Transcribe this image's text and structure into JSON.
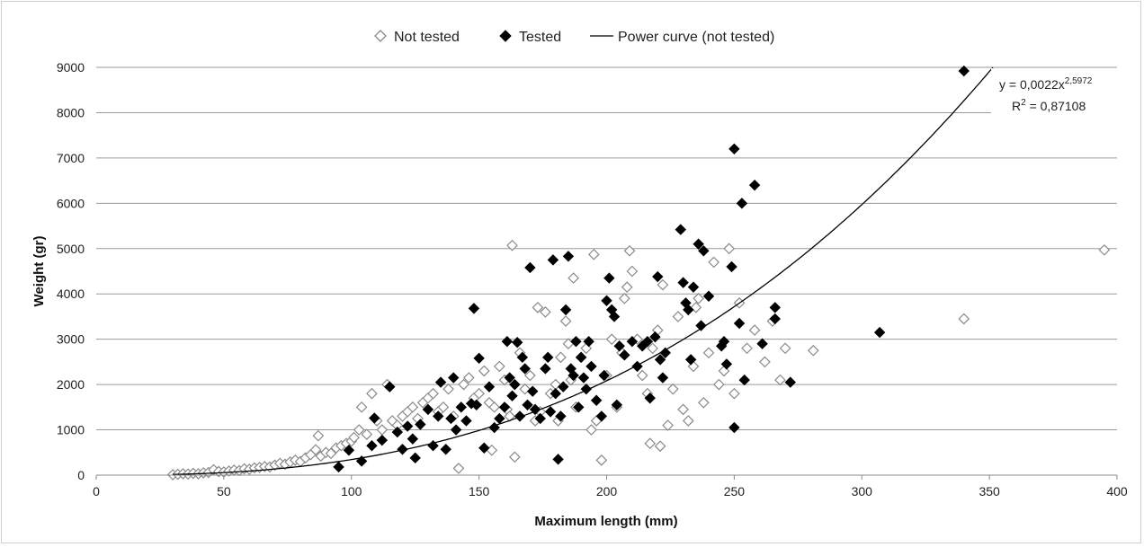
{
  "chart_data": {
    "type": "scatter",
    "xlabel": "Maximum length (mm)",
    "ylabel": "Weight (gr)",
    "xlim": [
      0,
      400
    ],
    "ylim": [
      0,
      9000
    ],
    "x_ticks": [
      "0",
      "50",
      "100",
      "150",
      "200",
      "250",
      "300",
      "350",
      "400"
    ],
    "y_ticks": [
      "0",
      "1000",
      "2000",
      "3000",
      "4000",
      "5000",
      "6000",
      "7000",
      "8000",
      "9000"
    ],
    "grid": "horizontal",
    "legend_position": "top",
    "legend": [
      {
        "label": "Not tested",
        "marker": "open-diamond"
      },
      {
        "label": "Tested",
        "marker": "filled-diamond"
      },
      {
        "label": "Power curve (not tested)",
        "marker": "line"
      }
    ],
    "annotation": {
      "equation_prefix": "y = 0,0022x",
      "equation_exponent": "2,5972",
      "r2_prefix": "R",
      "r2_exponent": "2",
      "r2_value": " = 0,87108"
    },
    "trendline": {
      "coefficient": 0.0022,
      "exponent": 2.5972
    },
    "series": [
      {
        "name": "Not tested",
        "marker": "open-diamond",
        "points": [
          [
            30,
            10
          ],
          [
            32,
            20
          ],
          [
            34,
            30
          ],
          [
            36,
            25
          ],
          [
            38,
            40
          ],
          [
            40,
            30
          ],
          [
            42,
            50
          ],
          [
            44,
            60
          ],
          [
            46,
            120
          ],
          [
            48,
            80
          ],
          [
            50,
            70
          ],
          [
            52,
            90
          ],
          [
            54,
            110
          ],
          [
            56,
            100
          ],
          [
            58,
            140
          ],
          [
            60,
            130
          ],
          [
            62,
            160
          ],
          [
            64,
            170
          ],
          [
            66,
            190
          ],
          [
            68,
            180
          ],
          [
            70,
            220
          ],
          [
            72,
            260
          ],
          [
            74,
            240
          ],
          [
            76,
            290
          ],
          [
            78,
            330
          ],
          [
            80,
            300
          ],
          [
            82,
            380
          ],
          [
            84,
            450
          ],
          [
            86,
            560
          ],
          [
            87,
            870
          ],
          [
            88,
            420
          ],
          [
            90,
            500
          ],
          [
            92,
            480
          ],
          [
            94,
            600
          ],
          [
            96,
            650
          ],
          [
            98,
            700
          ],
          [
            100,
            750
          ],
          [
            101,
            830
          ],
          [
            103,
            1000
          ],
          [
            104,
            1500
          ],
          [
            106,
            900
          ],
          [
            108,
            1800
          ],
          [
            110,
            1200
          ],
          [
            112,
            1000
          ],
          [
            114,
            2000
          ],
          [
            116,
            1200
          ],
          [
            118,
            1100
          ],
          [
            120,
            1300
          ],
          [
            122,
            1400
          ],
          [
            124,
            1500
          ],
          [
            126,
            1250
          ],
          [
            128,
            1600
          ],
          [
            130,
            1700
          ],
          [
            132,
            1800
          ],
          [
            134,
            1400
          ],
          [
            136,
            1500
          ],
          [
            138,
            1900
          ],
          [
            140,
            1300
          ],
          [
            142,
            150
          ],
          [
            144,
            2000
          ],
          [
            146,
            2150
          ],
          [
            148,
            1700
          ],
          [
            150,
            1800
          ],
          [
            152,
            2300
          ],
          [
            154,
            1600
          ],
          [
            155,
            550
          ],
          [
            156,
            1500
          ],
          [
            158,
            2400
          ],
          [
            160,
            2100
          ],
          [
            161,
            1450
          ],
          [
            162,
            1300
          ],
          [
            163,
            5070
          ],
          [
            164,
            400
          ],
          [
            166,
            2700
          ],
          [
            168,
            1900
          ],
          [
            170,
            2200
          ],
          [
            172,
            1200
          ],
          [
            173,
            3700
          ],
          [
            174,
            1400
          ],
          [
            176,
            3600
          ],
          [
            178,
            1800
          ],
          [
            180,
            2000
          ],
          [
            181,
            1200
          ],
          [
            182,
            2600
          ],
          [
            184,
            3400
          ],
          [
            185,
            2900
          ],
          [
            186,
            2100
          ],
          [
            187,
            4350
          ],
          [
            188,
            1500
          ],
          [
            190,
            2600
          ],
          [
            192,
            2800
          ],
          [
            194,
            1000
          ],
          [
            195,
            4870
          ],
          [
            196,
            1200
          ],
          [
            198,
            330
          ],
          [
            200,
            2200
          ],
          [
            202,
            3000
          ],
          [
            204,
            1500
          ],
          [
            206,
            2700
          ],
          [
            207,
            3900
          ],
          [
            208,
            4150
          ],
          [
            209,
            4950
          ],
          [
            210,
            4500
          ],
          [
            212,
            3000
          ],
          [
            214,
            2200
          ],
          [
            216,
            1800
          ],
          [
            217,
            700
          ],
          [
            218,
            2800
          ],
          [
            220,
            3200
          ],
          [
            221,
            640
          ],
          [
            222,
            4200
          ],
          [
            224,
            1100
          ],
          [
            226,
            1900
          ],
          [
            228,
            3500
          ],
          [
            230,
            1450
          ],
          [
            232,
            1200
          ],
          [
            234,
            2400
          ],
          [
            235,
            3700
          ],
          [
            236,
            3900
          ],
          [
            238,
            1600
          ],
          [
            240,
            2700
          ],
          [
            242,
            4700
          ],
          [
            244,
            2000
          ],
          [
            246,
            2300
          ],
          [
            248,
            5000
          ],
          [
            250,
            1800
          ],
          [
            252,
            3800
          ],
          [
            255,
            2800
          ],
          [
            258,
            3200
          ],
          [
            262,
            2500
          ],
          [
            265,
            3400
          ],
          [
            268,
            2100
          ],
          [
            270,
            2800
          ],
          [
            281,
            2750
          ],
          [
            340,
            3450
          ],
          [
            395,
            4970
          ]
        ]
      },
      {
        "name": "Tested",
        "marker": "filled-diamond",
        "points": [
          [
            95,
            180
          ],
          [
            99,
            550
          ],
          [
            104,
            310
          ],
          [
            108,
            650
          ],
          [
            109,
            1260
          ],
          [
            112,
            770
          ],
          [
            115,
            1950
          ],
          [
            118,
            950
          ],
          [
            120,
            570
          ],
          [
            122,
            1080
          ],
          [
            124,
            800
          ],
          [
            125,
            380
          ],
          [
            127,
            1120
          ],
          [
            130,
            1450
          ],
          [
            132,
            650
          ],
          [
            134,
            1300
          ],
          [
            135,
            2050
          ],
          [
            137,
            570
          ],
          [
            139,
            1250
          ],
          [
            140,
            2150
          ],
          [
            141,
            1000
          ],
          [
            143,
            1500
          ],
          [
            145,
            1200
          ],
          [
            147,
            1580
          ],
          [
            148,
            3680
          ],
          [
            149,
            1550
          ],
          [
            150,
            2580
          ],
          [
            152,
            600
          ],
          [
            154,
            1950
          ],
          [
            156,
            1050
          ],
          [
            158,
            1250
          ],
          [
            160,
            1500
          ],
          [
            161,
            2950
          ],
          [
            162,
            2150
          ],
          [
            163,
            1750
          ],
          [
            164,
            2000
          ],
          [
            165,
            2930
          ],
          [
            166,
            1300
          ],
          [
            167,
            2600
          ],
          [
            168,
            2350
          ],
          [
            169,
            1550
          ],
          [
            170,
            4580
          ],
          [
            171,
            1850
          ],
          [
            172,
            1450
          ],
          [
            174,
            1250
          ],
          [
            176,
            2350
          ],
          [
            177,
            2600
          ],
          [
            178,
            1400
          ],
          [
            179,
            4750
          ],
          [
            180,
            1800
          ],
          [
            181,
            350
          ],
          [
            182,
            1300
          ],
          [
            183,
            1950
          ],
          [
            184,
            3650
          ],
          [
            185,
            4830
          ],
          [
            186,
            2350
          ],
          [
            187,
            2200
          ],
          [
            188,
            2950
          ],
          [
            189,
            1500
          ],
          [
            190,
            2600
          ],
          [
            191,
            2150
          ],
          [
            192,
            1900
          ],
          [
            193,
            2950
          ],
          [
            194,
            2400
          ],
          [
            196,
            1650
          ],
          [
            198,
            1300
          ],
          [
            199,
            2200
          ],
          [
            200,
            3850
          ],
          [
            201,
            4350
          ],
          [
            202,
            3650
          ],
          [
            203,
            3500
          ],
          [
            204,
            1550
          ],
          [
            205,
            2850
          ],
          [
            207,
            2650
          ],
          [
            210,
            2950
          ],
          [
            212,
            2400
          ],
          [
            214,
            2850
          ],
          [
            216,
            2950
          ],
          [
            217,
            1700
          ],
          [
            219,
            3050
          ],
          [
            220,
            4380
          ],
          [
            221,
            2550
          ],
          [
            222,
            2150
          ],
          [
            223,
            2700
          ],
          [
            229,
            5420
          ],
          [
            230,
            4250
          ],
          [
            231,
            3800
          ],
          [
            232,
            3650
          ],
          [
            233,
            2550
          ],
          [
            234,
            4150
          ],
          [
            236,
            5100
          ],
          [
            237,
            3300
          ],
          [
            238,
            4950
          ],
          [
            240,
            3950
          ],
          [
            245,
            2850
          ],
          [
            246,
            2950
          ],
          [
            247,
            2450
          ],
          [
            249,
            4600
          ],
          [
            250,
            7200
          ],
          [
            250,
            1050
          ],
          [
            252,
            3350
          ],
          [
            253,
            6000
          ],
          [
            254,
            2100
          ],
          [
            258,
            6400
          ],
          [
            261,
            2900
          ],
          [
            266,
            3700
          ],
          [
            266,
            3450
          ],
          [
            272,
            2050
          ],
          [
            307,
            3150
          ],
          [
            340,
            8920
          ]
        ]
      }
    ]
  }
}
